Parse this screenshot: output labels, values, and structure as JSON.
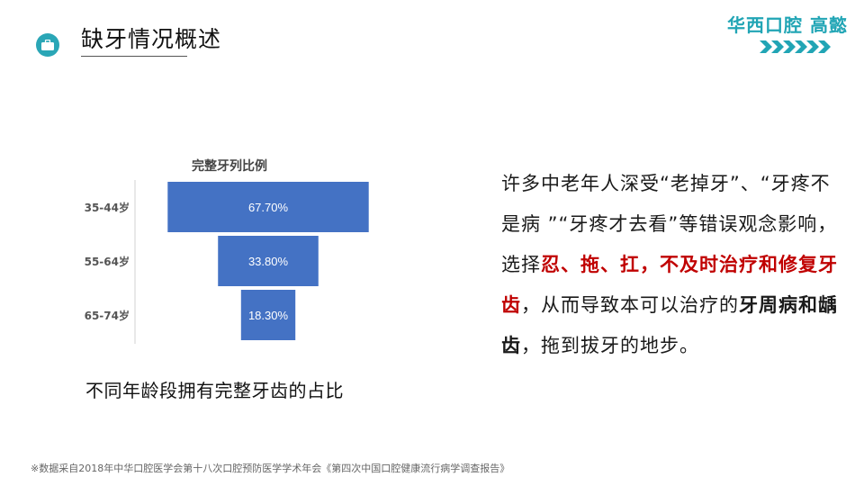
{
  "header": {
    "title": "缺牙情况概述",
    "brand": "华西口腔 高懿",
    "icon": "briefcase-icon",
    "accent_color": "#21a5b5"
  },
  "chart_data": {
    "type": "bar",
    "title": "完整牙列比例",
    "categories": [
      "35-44岁",
      "55-64岁",
      "65-74岁"
    ],
    "values": [
      67.7,
      33.8,
      18.3
    ],
    "value_labels": [
      "67.70%",
      "33.80%",
      "18.30%"
    ],
    "orientation": "horizontal",
    "alignment": "centered",
    "bar_color": "#4472c4",
    "ylim": [
      0,
      100
    ]
  },
  "chart_caption": "不同年龄段拥有完整牙齿的占比",
  "body": {
    "segments": [
      {
        "text": "许多中老年人深受“老掉牙”、“牙疼不是病 ”“牙疼才去看”等错误观念影响，选择",
        "style": "normal"
      },
      {
        "text": "忍、拖、扛，不及时治疗和修复牙齿",
        "style": "red"
      },
      {
        "text": "，从而导致本可以治疗的",
        "style": "normal"
      },
      {
        "text": "牙周病和龋齿",
        "style": "bold"
      },
      {
        "text": "，拖到拔牙的地步。",
        "style": "normal"
      }
    ]
  },
  "footnote": "※数据采自2018年中华口腔医学会第十八次口腔预防医学学术年会《第四次中国口腔健康流行病学调查报告》"
}
